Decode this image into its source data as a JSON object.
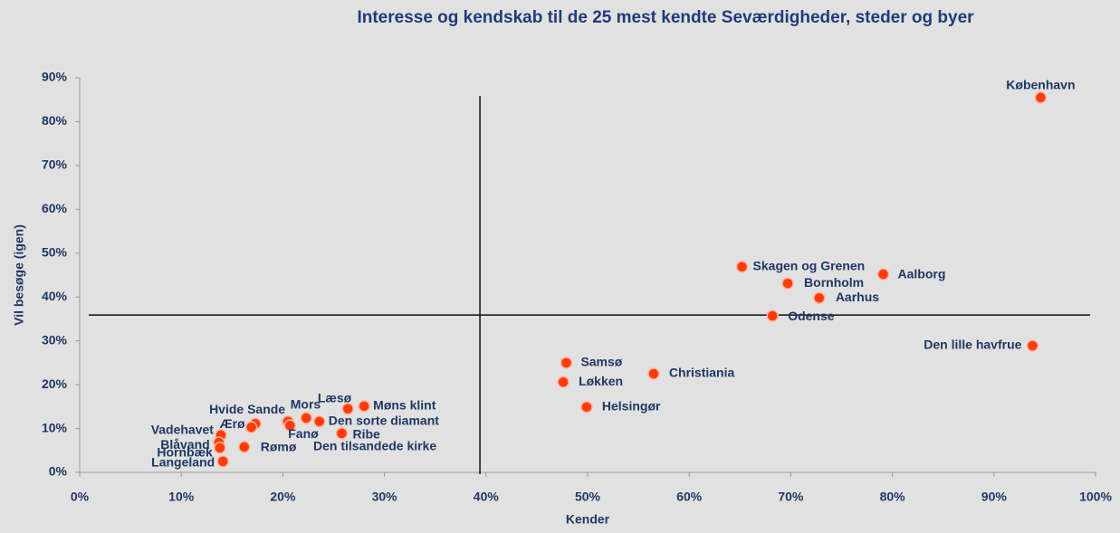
{
  "chart_data": {
    "type": "scatter",
    "title": "Interesse og kendskab til de 25 mest kendte Seværdigheder, steder og byer",
    "xlabel": "Kender",
    "ylabel": "Vil besøge (igen)",
    "color": "#ff3b0a",
    "labels": [
      "København",
      "Skagen og Grenen",
      "Aalborg",
      "Bornholm",
      "Aarhus",
      "Odense",
      "Den lille havfrue",
      "Samsø",
      "Christiania",
      "Løkken",
      "Helsingør",
      "Møns klint",
      "Læsø",
      "Mors",
      "Den sorte diamant",
      "Hvide Sande",
      "Den tilsandede kirke",
      "Fanø",
      "Ærø",
      "Ribe",
      "Vadehavet",
      "Blåvand",
      "Hornbæk",
      "Rømø",
      "Langeland"
    ],
    "x": [
      94.6,
      65.2,
      79.1,
      69.7,
      72.8,
      68.2,
      93.8,
      47.9,
      56.5,
      47.6,
      49.9,
      28.0,
      26.4,
      22.3,
      23.6,
      17.3,
      20.5,
      20.7,
      16.9,
      25.8,
      13.9,
      13.7,
      13.8,
      16.2,
      14.1
    ],
    "y": [
      85.5,
      46.9,
      45.2,
      43.1,
      39.8,
      35.7,
      28.9,
      25.0,
      22.5,
      20.6,
      14.9,
      15.1,
      14.5,
      12.4,
      11.6,
      11.1,
      11.6,
      10.7,
      10.3,
      8.9,
      8.5,
      6.8,
      5.6,
      5.8,
      2.5
    ],
    "xlim": [
      0,
      100
    ],
    "ylim": [
      0,
      90
    ],
    "xticks": [
      {
        "value": 0,
        "label": "0%"
      },
      {
        "value": 10,
        "label": "10%"
      },
      {
        "value": 20,
        "label": "20%"
      },
      {
        "value": 30,
        "label": "30%"
      },
      {
        "value": 40,
        "label": "40%"
      },
      {
        "value": 50,
        "label": "50%"
      },
      {
        "value": 60,
        "label": "60%"
      },
      {
        "value": 70,
        "label": "70%"
      },
      {
        "value": 80,
        "label": "80%"
      },
      {
        "value": 90,
        "label": "90%"
      },
      {
        "value": 100,
        "label": "100%"
      }
    ],
    "yticks": [
      {
        "value": 0,
        "label": "0%"
      },
      {
        "value": 10,
        "label": "10%"
      },
      {
        "value": 20,
        "label": "20%"
      },
      {
        "value": 30,
        "label": "30%"
      },
      {
        "value": 40,
        "label": "40%"
      },
      {
        "value": 50,
        "label": "50%"
      },
      {
        "value": 60,
        "label": "60%"
      },
      {
        "value": 70,
        "label": "70%"
      },
      {
        "value": 80,
        "label": "80%"
      },
      {
        "value": 90,
        "label": "90%"
      }
    ],
    "ref_x": 39.4,
    "ref_y": 35.9
  }
}
